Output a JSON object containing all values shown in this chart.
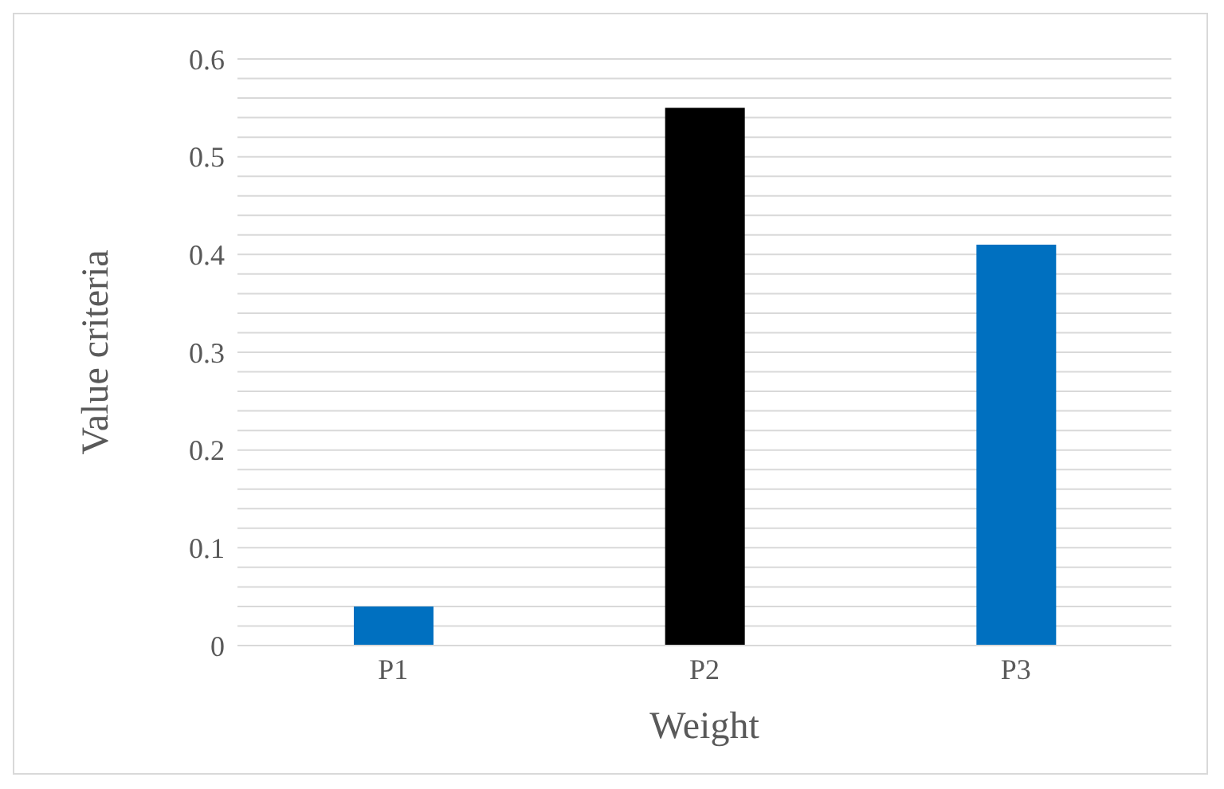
{
  "chart_data": {
    "type": "bar",
    "xlabel": "Weight",
    "ylabel": "Value criteria",
    "categories": [
      "P1",
      "P2",
      "P3"
    ],
    "values": [
      0.04,
      0.55,
      0.41
    ],
    "colors": [
      "#0070c0",
      "#000000",
      "#0070c0"
    ],
    "ylim": [
      0,
      0.6
    ],
    "yticks": [
      0,
      {
        "value": 0.02,
        "label": null
      },
      {
        "value": 0.04,
        "label": null
      },
      {
        "value": 0.06,
        "label": null
      },
      {
        "value": 0.08,
        "label": null
      },
      0.1,
      {
        "value": 0.12,
        "label": null
      },
      {
        "value": 0.14,
        "label": null
      },
      {
        "value": 0.16,
        "label": null
      },
      {
        "value": 0.18,
        "label": null
      },
      0.2,
      {
        "value": 0.22,
        "label": null
      },
      {
        "value": 0.24,
        "label": null
      },
      {
        "value": 0.26,
        "label": null
      },
      {
        "value": 0.28,
        "label": null
      },
      0.3,
      {
        "value": 0.32,
        "label": null
      },
      {
        "value": 0.34,
        "label": null
      },
      {
        "value": 0.36,
        "label": null
      },
      {
        "value": 0.38,
        "label": null
      },
      0.4,
      {
        "value": 0.42,
        "label": null
      },
      {
        "value": 0.44,
        "label": null
      },
      {
        "value": 0.46,
        "label": null
      },
      {
        "value": 0.48,
        "label": null
      },
      0.5,
      {
        "value": 0.52,
        "label": null
      },
      {
        "value": 0.54,
        "label": null
      },
      {
        "value": 0.56,
        "label": null
      },
      {
        "value": 0.58,
        "label": null
      },
      0.6
    ],
    "grid": "y"
  }
}
